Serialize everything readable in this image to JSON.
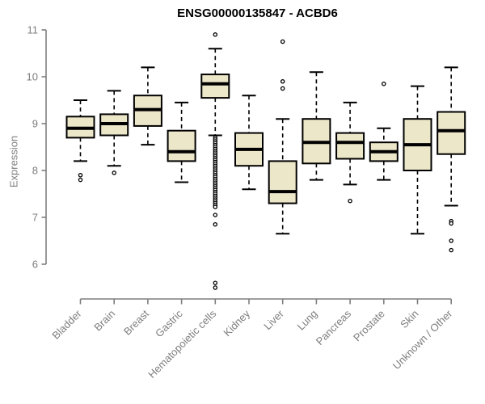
{
  "chart_data": {
    "type": "boxplot",
    "title": "ENSG00000135847 - ACBD6",
    "ylabel": "Expression",
    "xlabel": "",
    "ylim": [
      6,
      11
    ],
    "yticks": [
      "6",
      "7",
      "8",
      "9",
      "10",
      "11"
    ],
    "grid": false,
    "legend": "none",
    "categories": [
      "Bladder",
      "Brain",
      "Breast",
      "Gastric",
      "Hematopoietic cells",
      "Kidney",
      "Liver",
      "Lung",
      "Pancreas",
      "Prostate",
      "Skin",
      "Unknown / Other"
    ],
    "boxes": [
      {
        "category": "Bladder",
        "whisker_low": 8.2,
        "q1": 8.7,
        "median": 8.9,
        "q3": 9.15,
        "whisker_high": 9.5,
        "outliers": [
          7.9,
          7.8
        ]
      },
      {
        "category": "Brain",
        "whisker_low": 8.1,
        "q1": 8.75,
        "median": 9.0,
        "q3": 9.2,
        "whisker_high": 9.7,
        "outliers": [
          7.95
        ]
      },
      {
        "category": "Breast",
        "whisker_low": 8.55,
        "q1": 8.95,
        "median": 9.3,
        "q3": 9.6,
        "whisker_high": 10.2,
        "outliers": []
      },
      {
        "category": "Gastric",
        "whisker_low": 7.75,
        "q1": 8.2,
        "median": 8.4,
        "q3": 8.85,
        "whisker_high": 9.45,
        "outliers": []
      },
      {
        "category": "Hematopoietic cells",
        "whisker_low": 8.75,
        "q1": 9.55,
        "median": 9.85,
        "q3": 10.05,
        "whisker_high": 10.6,
        "outliers": [
          10.9,
          8.7,
          8.66,
          8.62,
          8.58,
          8.54,
          8.5,
          8.46,
          8.42,
          8.38,
          8.34,
          8.3,
          8.26,
          8.22,
          8.18,
          8.14,
          8.1,
          8.06,
          8.02,
          7.98,
          7.94,
          7.9,
          7.86,
          7.82,
          7.78,
          7.74,
          7.7,
          7.66,
          7.62,
          7.58,
          7.54,
          7.5,
          7.46,
          7.42,
          7.38,
          7.34,
          7.3,
          7.26,
          7.22,
          7.05,
          6.85,
          5.6,
          5.5
        ]
      },
      {
        "category": "Kidney",
        "whisker_low": 7.6,
        "q1": 8.1,
        "median": 8.45,
        "q3": 8.8,
        "whisker_high": 9.6,
        "outliers": []
      },
      {
        "category": "Liver",
        "whisker_low": 6.65,
        "q1": 7.3,
        "median": 7.55,
        "q3": 8.2,
        "whisker_high": 9.1,
        "outliers": [
          10.75,
          9.9,
          9.75
        ]
      },
      {
        "category": "Lung",
        "whisker_low": 7.8,
        "q1": 8.15,
        "median": 8.6,
        "q3": 9.1,
        "whisker_high": 10.1,
        "outliers": []
      },
      {
        "category": "Pancreas",
        "whisker_low": 7.7,
        "q1": 8.25,
        "median": 8.6,
        "q3": 8.8,
        "whisker_high": 9.45,
        "outliers": [
          7.35
        ]
      },
      {
        "category": "Prostate",
        "whisker_low": 7.8,
        "q1": 8.2,
        "median": 8.4,
        "q3": 8.6,
        "whisker_high": 8.9,
        "outliers": [
          9.85
        ]
      },
      {
        "category": "Skin",
        "whisker_low": 6.65,
        "q1": 8.0,
        "median": 8.55,
        "q3": 9.1,
        "whisker_high": 9.8,
        "outliers": []
      },
      {
        "category": "Unknown / Other",
        "whisker_low": 7.25,
        "q1": 8.35,
        "median": 8.85,
        "q3": 9.25,
        "whisker_high": 10.2,
        "outliers": [
          6.92,
          6.87,
          6.5,
          6.3
        ]
      }
    ],
    "colors": {
      "box_fill": "#EDE7C9",
      "box_stroke": "#000000",
      "median": "#000000",
      "whisker": "#000000",
      "outlier": "#000000",
      "axis": "#7E7E7E",
      "tick_label": "#7E7E7E",
      "title": "#000000",
      "background": "#FFFFFF"
    }
  }
}
